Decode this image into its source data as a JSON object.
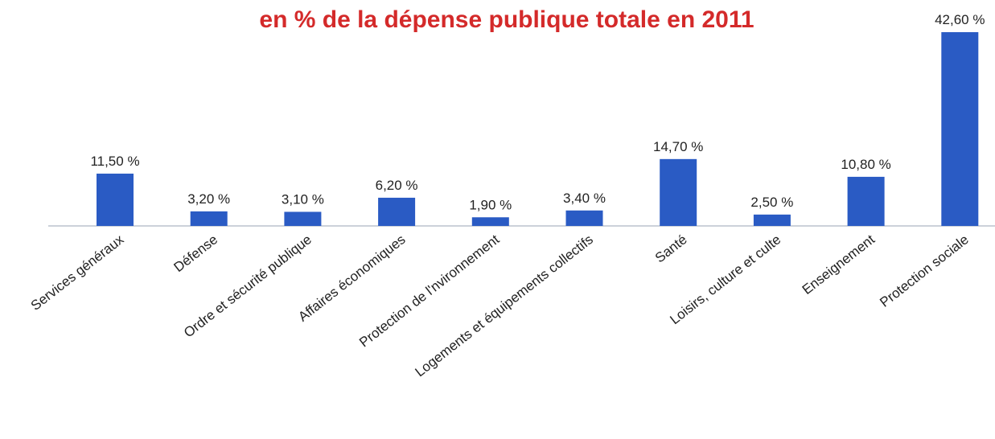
{
  "chart_data": {
    "type": "bar",
    "title": "en % de la dépense publique totale en 2011",
    "categories": [
      "Services généraux",
      "Défense",
      "Ordre et sécurité publique",
      "Affaires économiques",
      "Protection de l'nvironnement",
      "Logements et équipements collectifs",
      "Santé",
      "Loisirs, culture et culte",
      "Enseignement",
      "Protection sociale"
    ],
    "values": [
      11.5,
      3.2,
      3.1,
      6.2,
      1.9,
      3.4,
      14.7,
      2.5,
      10.8,
      42.6
    ],
    "value_labels": [
      "11,50 %",
      "3,20 %",
      "3,10 %",
      "6,20 %",
      "1,90 %",
      "3,40 %",
      "14,70 %",
      "2,50 %",
      "10,80 %",
      "42,60 %"
    ],
    "color": "#2a5bc4"
  }
}
